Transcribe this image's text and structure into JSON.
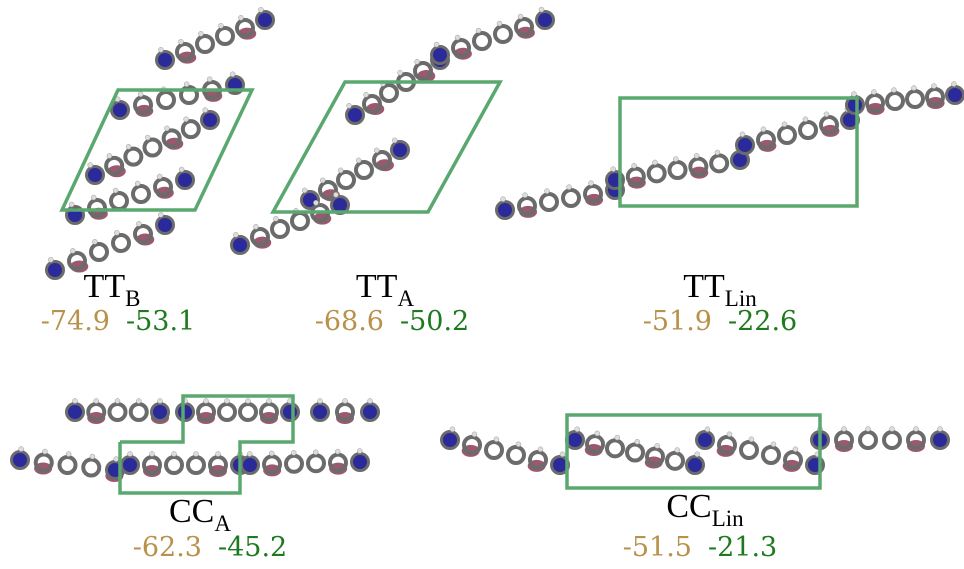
{
  "panels": [
    {
      "label": "TT",
      "subscript": "B",
      "values": [
        -74.9,
        -53.1
      ]
    },
    {
      "label": "TT",
      "subscript": "A",
      "values": [
        -68.6,
        -50.2
      ]
    },
    {
      "label": "TT",
      "subscript": "Lin",
      "values": [
        -51.9,
        -22.6
      ]
    },
    {
      "label": "CC",
      "subscript": "A",
      "values": [
        -62.3,
        -45.2
      ]
    },
    {
      "label": "CC",
      "subscript": "Lin",
      "values": [
        -51.5,
        -21.3
      ]
    }
  ]
}
